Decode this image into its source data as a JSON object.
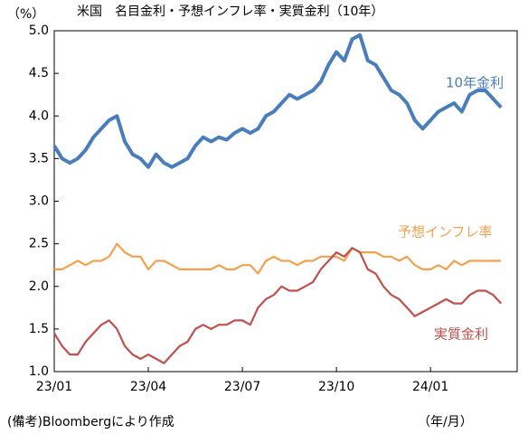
{
  "chart_data": {
    "type": "line",
    "title": "米国　名目金利・予想インフレ率・実質金利（10年）",
    "y_unit": "（%）",
    "x_label": "（年/月）",
    "source": "(備考)Bloombergにより作成",
    "categories": [
      "23/01",
      null,
      null,
      null,
      null,
      null,
      null,
      null,
      null,
      null,
      null,
      null,
      "23/04",
      null,
      null,
      null,
      null,
      null,
      null,
      null,
      null,
      null,
      null,
      null,
      "23/07",
      null,
      null,
      null,
      null,
      null,
      null,
      null,
      null,
      null,
      null,
      null,
      "23/10",
      null,
      null,
      null,
      null,
      null,
      null,
      null,
      null,
      null,
      null,
      null,
      "24/01",
      null,
      null,
      null,
      null,
      null,
      null,
      null,
      null,
      null
    ],
    "series": [
      {
        "name": "10年金利",
        "color": "#4a7ebb",
        "values": [
          3.65,
          3.5,
          3.45,
          3.5,
          3.6,
          3.75,
          3.85,
          3.95,
          4.0,
          3.7,
          3.55,
          3.5,
          3.4,
          3.55,
          3.45,
          3.4,
          3.45,
          3.5,
          3.65,
          3.75,
          3.7,
          3.75,
          3.72,
          3.8,
          3.85,
          3.8,
          3.85,
          4.0,
          4.05,
          4.15,
          4.25,
          4.2,
          4.25,
          4.3,
          4.4,
          4.6,
          4.75,
          4.65,
          4.9,
          4.95,
          4.65,
          4.6,
          4.45,
          4.3,
          4.25,
          4.15,
          3.95,
          3.85,
          3.95,
          4.05,
          4.1,
          4.15,
          4.05,
          4.25,
          4.3,
          4.3,
          4.2,
          4.1
        ]
      },
      {
        "name": "予想インフレ率",
        "color": "#f4a04c",
        "values": [
          2.2,
          2.2,
          2.25,
          2.3,
          2.25,
          2.3,
          2.3,
          2.35,
          2.5,
          2.4,
          2.35,
          2.35,
          2.2,
          2.3,
          2.3,
          2.25,
          2.2,
          2.2,
          2.2,
          2.2,
          2.2,
          2.25,
          2.2,
          2.2,
          2.25,
          2.25,
          2.15,
          2.3,
          2.35,
          2.3,
          2.3,
          2.25,
          2.3,
          2.3,
          2.35,
          2.35,
          2.35,
          2.3,
          2.45,
          2.4,
          2.4,
          2.4,
          2.35,
          2.35,
          2.3,
          2.35,
          2.25,
          2.2,
          2.2,
          2.25,
          2.2,
          2.3,
          2.25,
          2.3,
          2.3,
          2.3,
          2.3,
          2.3
        ]
      },
      {
        "name": "実質金利",
        "color": "#c0504d",
        "values": [
          1.45,
          1.3,
          1.2,
          1.2,
          1.35,
          1.45,
          1.55,
          1.6,
          1.5,
          1.3,
          1.2,
          1.15,
          1.2,
          1.15,
          1.1,
          1.2,
          1.3,
          1.35,
          1.5,
          1.55,
          1.5,
          1.55,
          1.55,
          1.6,
          1.6,
          1.55,
          1.75,
          1.85,
          1.9,
          2.0,
          1.95,
          1.95,
          2.0,
          2.05,
          2.2,
          2.3,
          2.4,
          2.35,
          2.45,
          2.4,
          2.2,
          2.15,
          2.0,
          1.9,
          1.85,
          1.75,
          1.65,
          1.7,
          1.75,
          1.8,
          1.85,
          1.8,
          1.8,
          1.9,
          1.95,
          1.95,
          1.9,
          1.8
        ]
      }
    ],
    "ylim": [
      1,
      5
    ],
    "yticks": [
      {
        "value": 1,
        "label": "1.0"
      },
      1.5,
      {
        "value": 2,
        "label": "2.0"
      },
      2.5,
      {
        "value": 3,
        "label": "3.0"
      },
      3.5,
      {
        "value": 4,
        "label": "4.0"
      },
      4.5,
      {
        "value": 5,
        "label": "5.0"
      }
    ],
    "grid": false
  }
}
